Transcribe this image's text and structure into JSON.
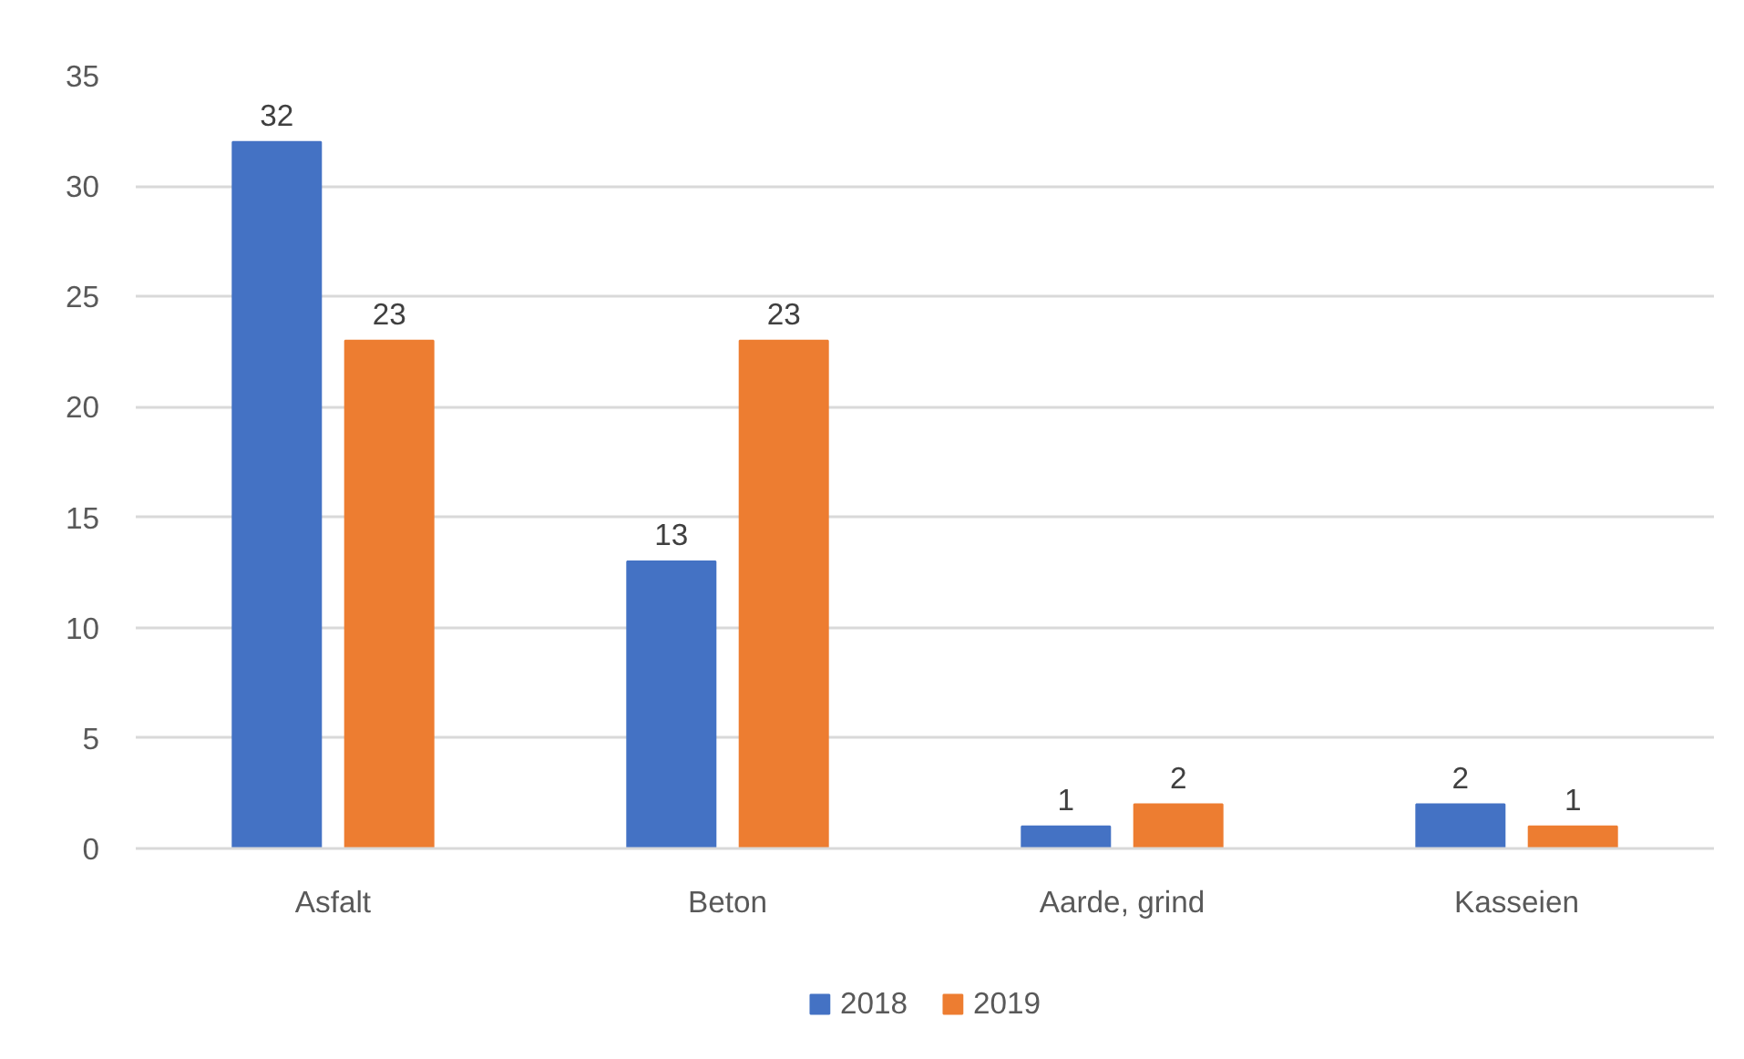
{
  "chart_data": {
    "type": "bar",
    "categories": [
      "Asfalt",
      "Beton",
      "Aarde, grind",
      "Kasseien"
    ],
    "series": [
      {
        "name": "2018",
        "color": "#4472c4",
        "values": [
          32,
          13,
          1,
          2
        ]
      },
      {
        "name": "2019",
        "color": "#ed7d31",
        "values": [
          23,
          23,
          2,
          1
        ]
      }
    ],
    "ylim": [
      0,
      35
    ],
    "yticks": [
      0,
      5,
      10,
      15,
      20,
      25,
      30,
      35
    ],
    "grid": "y",
    "legend": "bottom",
    "data_labels": true
  }
}
